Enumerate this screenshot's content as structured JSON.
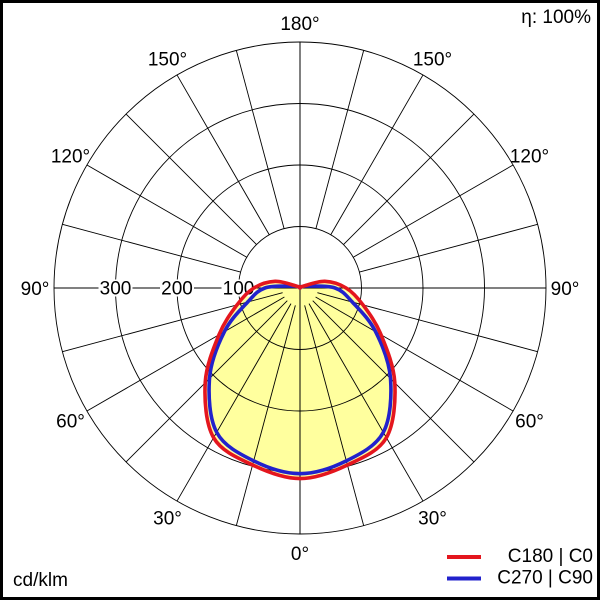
{
  "header": {
    "efficiency": "η: 100%"
  },
  "footer": {
    "unit": "cd/klm"
  },
  "legend": {
    "items": [
      {
        "label": "C180 | C0",
        "color": "#e4161e"
      },
      {
        "label": "C270 | C90",
        "color": "#2222cc"
      }
    ]
  },
  "chart_data": {
    "type": "polar_photometric",
    "title": "Luminous intensity distribution",
    "unit": "cd/klm",
    "efficiency_label": "η: 100%",
    "grid": {
      "angle_step_deg": 15,
      "angle_labels_deg": [
        0,
        30,
        60,
        90,
        120,
        150,
        180
      ],
      "angle_label_suffix": "°",
      "line_color": "#000000"
    },
    "radial_axis": {
      "ticks": [
        100,
        200,
        300
      ],
      "max": 400,
      "unit": "cd/klm"
    },
    "fill": {
      "color": "#ffff9e",
      "follows_series": "C180 | C0"
    },
    "series": [
      {
        "name": "C180 | C0",
        "color": "#e4161e",
        "gamma_deg": [
          0,
          15,
          30,
          45,
          60,
          75,
          90,
          105,
          120,
          135,
          150,
          165,
          180
        ],
        "values_cd_per_klm": [
          310,
          298,
          281,
          218,
          152,
          106,
          75,
          42,
          6,
          2,
          1,
          1,
          0
        ]
      },
      {
        "name": "C270 | C90",
        "color": "#2222cc",
        "gamma_deg": [
          0,
          15,
          30,
          45,
          60,
          75,
          90,
          105,
          120,
          135,
          150,
          165,
          180
        ],
        "values_cd_per_klm": [
          302,
          291,
          271,
          208,
          142,
          88,
          57,
          12,
          4,
          2,
          1,
          1,
          0
        ]
      }
    ]
  }
}
